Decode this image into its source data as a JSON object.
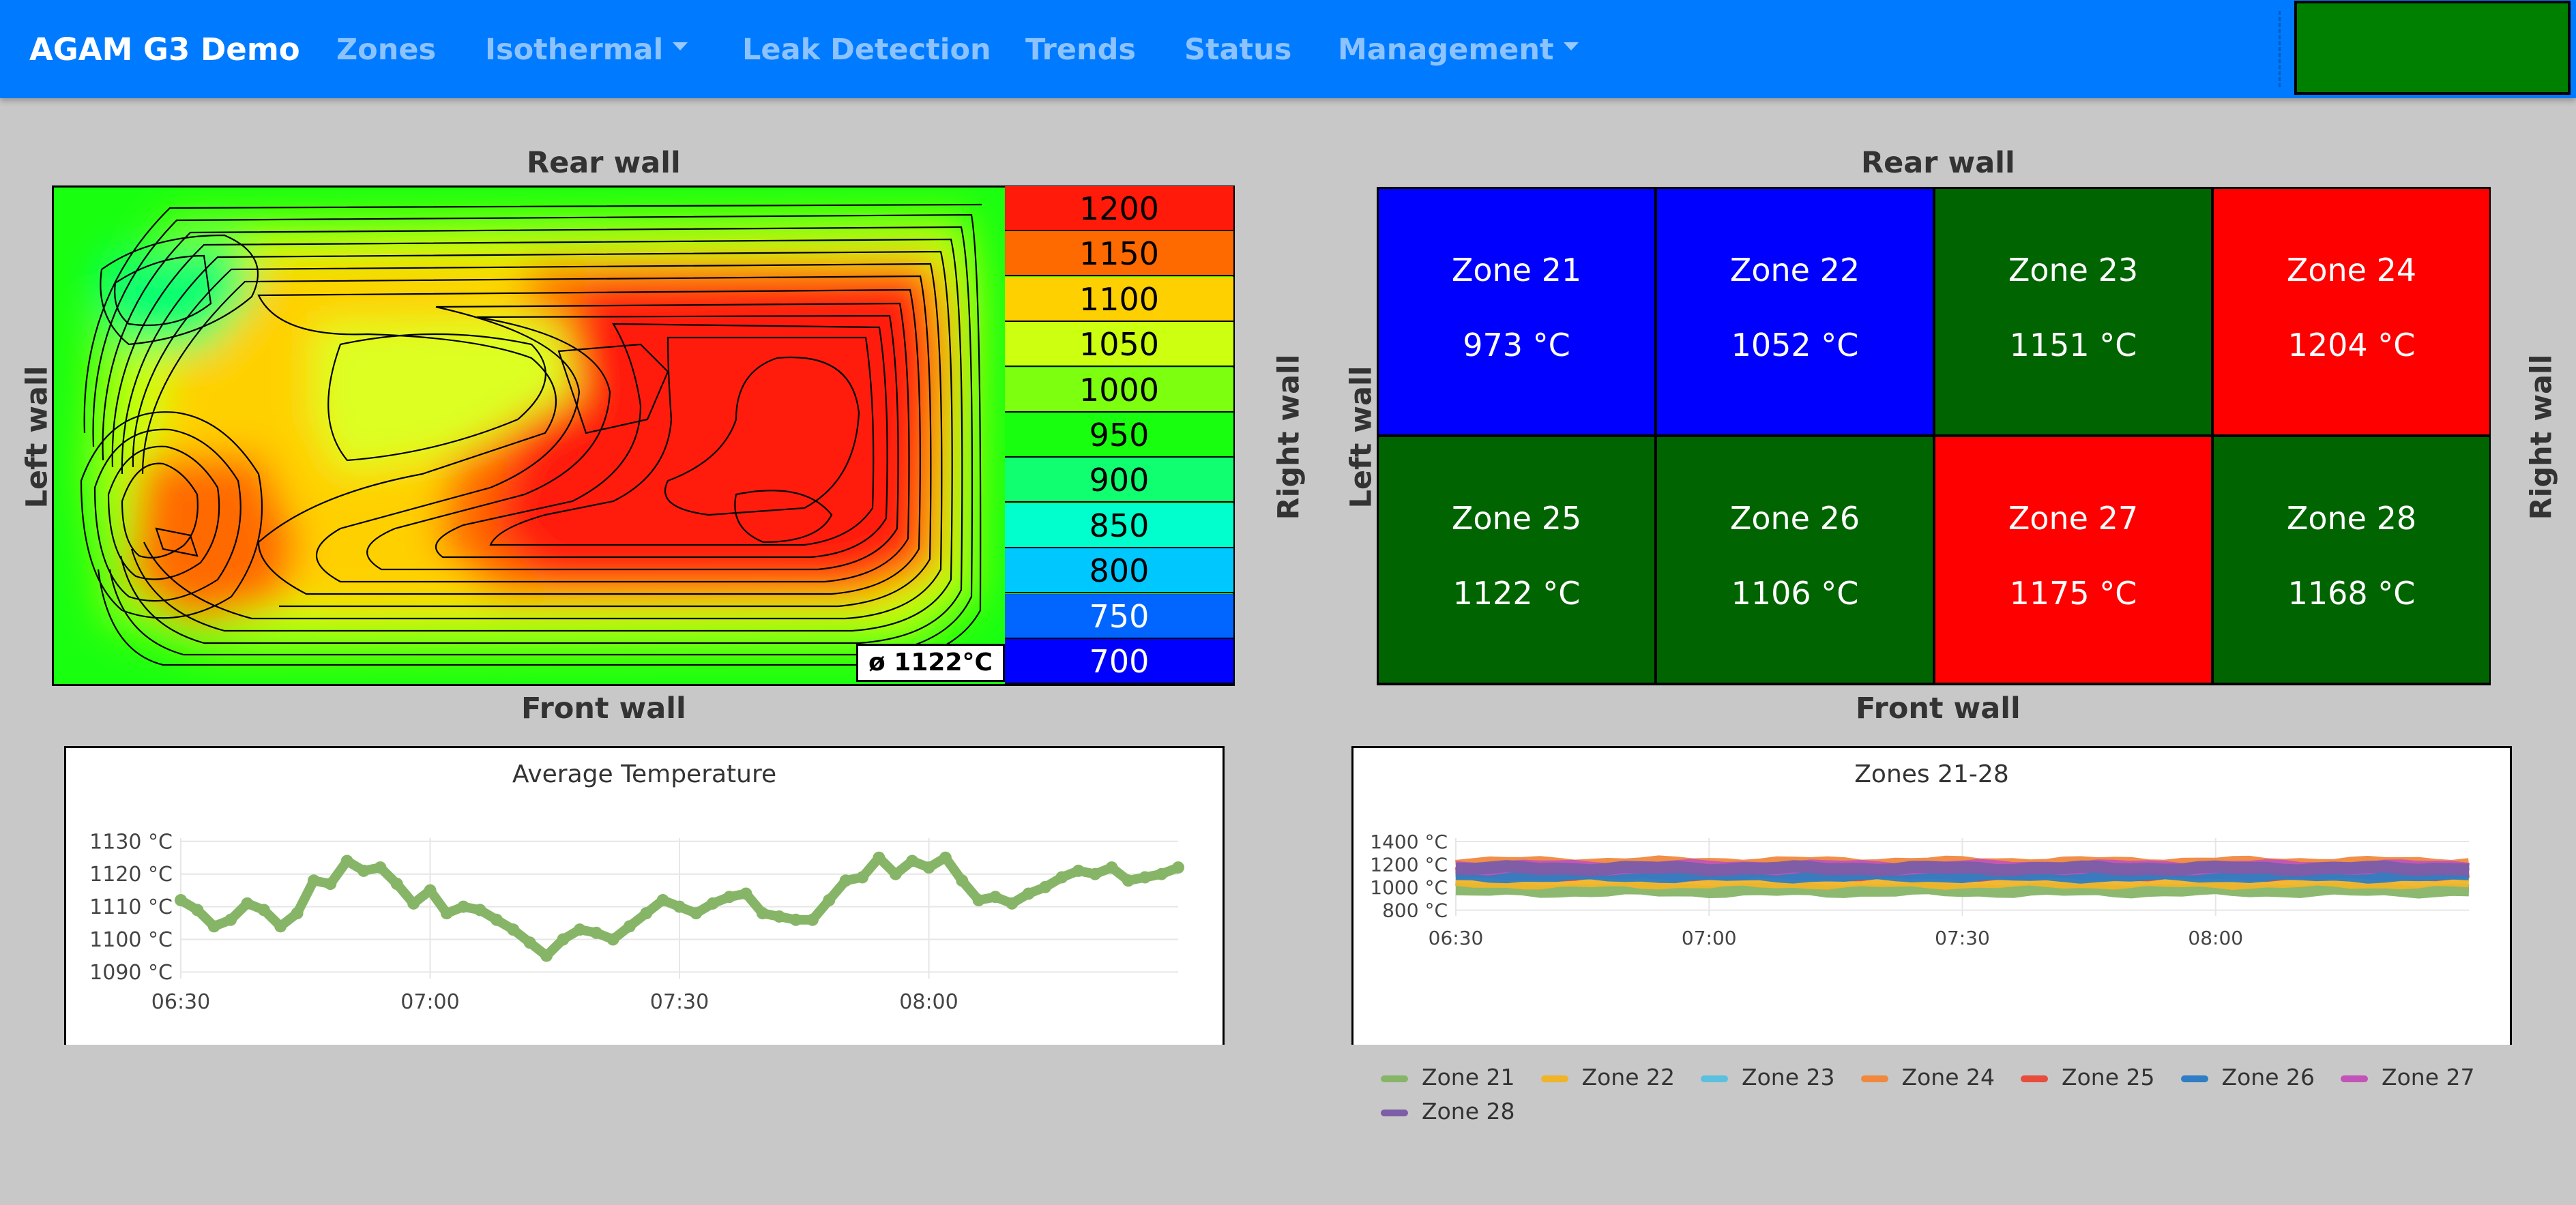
{
  "nav": {
    "brand": "AGAM G3 Demo",
    "items": [
      {
        "label": "Zones",
        "dropdown": false
      },
      {
        "label": "Isothermal",
        "dropdown": true
      },
      {
        "label": "Leak Detection",
        "dropdown": false
      },
      {
        "label": "Trends",
        "dropdown": false
      },
      {
        "label": "Status",
        "dropdown": false
      },
      {
        "label": "Management",
        "dropdown": true
      }
    ],
    "status_color": "#008000"
  },
  "heatmap": {
    "rear_label": "Rear wall",
    "front_label": "Front wall",
    "left_label": "Left wall",
    "right_label": "Right wall",
    "average": "ø 1122°C",
    "scale": [
      {
        "value": "1200",
        "color": "#ff1a0a"
      },
      {
        "value": "1150",
        "color": "#ff6a00"
      },
      {
        "value": "1100",
        "color": "#ffd000"
      },
      {
        "value": "1050",
        "color": "#ccff10"
      },
      {
        "value": "1000",
        "color": "#7dff10"
      },
      {
        "value": "950",
        "color": "#19ff10"
      },
      {
        "value": "900",
        "color": "#10ff70"
      },
      {
        "value": "850",
        "color": "#00ffcc"
      },
      {
        "value": "800",
        "color": "#00c8ff"
      },
      {
        "value": "750",
        "color": "#0066ff"
      },
      {
        "value": "700",
        "color": "#0000ff"
      }
    ]
  },
  "zone_grid": {
    "rear_label": "Rear wall",
    "front_label": "Front wall",
    "left_label": "Left wall",
    "right_label": "Right wall",
    "zones": [
      {
        "name": "Zone 21",
        "temp": "973 °C",
        "color": "#0000ff"
      },
      {
        "name": "Zone 22",
        "temp": "1052 °C",
        "color": "#0000ff"
      },
      {
        "name": "Zone 23",
        "temp": "1151 °C",
        "color": "#006400"
      },
      {
        "name": "Zone 24",
        "temp": "1204 °C",
        "color": "#ff0000"
      },
      {
        "name": "Zone 25",
        "temp": "1122 °C",
        "color": "#006400"
      },
      {
        "name": "Zone 26",
        "temp": "1106 °C",
        "color": "#006400"
      },
      {
        "name": "Zone 27",
        "temp": "1175 °C",
        "color": "#ff0000"
      },
      {
        "name": "Zone 28",
        "temp": "1168 °C",
        "color": "#006400"
      }
    ]
  },
  "chart_data": [
    {
      "type": "line",
      "title": "Average Temperature",
      "ylim": [
        1088,
        1131
      ],
      "yticks": [
        "1130 °C",
        "1120 °C",
        "1110 °C",
        "1100 °C",
        "1090 °C"
      ],
      "ytick_values": [
        1130,
        1120,
        1110,
        1100,
        1090
      ],
      "xticks": [
        "06:30",
        "07:00",
        "07:30",
        "08:00"
      ],
      "xtick_minutes": [
        0,
        30,
        60,
        90
      ],
      "x_range_minutes": [
        0,
        120
      ],
      "grid": true,
      "series": [
        {
          "color": "#86b567",
          "x": [
            0,
            2,
            4,
            6,
            8,
            10,
            12,
            14,
            16,
            18,
            20,
            22,
            24,
            26,
            28,
            30,
            32,
            34,
            36,
            38,
            40,
            42,
            44,
            46,
            48,
            50,
            52,
            54,
            56,
            58,
            60,
            62,
            64,
            66,
            68,
            70,
            72,
            74,
            76,
            78,
            80,
            82,
            84,
            86,
            88,
            90,
            92,
            94,
            96,
            98,
            100,
            102,
            104,
            106,
            108,
            110,
            112,
            114,
            116,
            118,
            120
          ],
          "values": [
            1112,
            1109,
            1104,
            1106,
            1111,
            1109,
            1104,
            1108,
            1118,
            1117,
            1124,
            1121,
            1122,
            1117,
            1111,
            1115,
            1108,
            1110,
            1109,
            1106,
            1103,
            1099,
            1095,
            1100,
            1103,
            1102,
            1100,
            1104,
            1108,
            1112,
            1110,
            1108,
            1111,
            1113,
            1114,
            1108,
            1107,
            1106,
            1106,
            1112,
            1118,
            1119,
            1125,
            1120,
            1124,
            1122,
            1125,
            1118,
            1112,
            1113,
            1111,
            1114,
            1116,
            1119,
            1121,
            1120,
            1122,
            1118,
            1119,
            1120,
            1122
          ]
        }
      ]
    },
    {
      "type": "area",
      "title": "Zones 21-28",
      "ylim": [
        750,
        1430
      ],
      "yticks": [
        "1400 °C",
        "1200 °C",
        "1000 °C",
        "800 °C"
      ],
      "ytick_values": [
        1400,
        1200,
        1000,
        800
      ],
      "xticks": [
        "06:30",
        "07:00",
        "07:30",
        "08:00"
      ],
      "xtick_minutes": [
        0,
        30,
        60,
        90
      ],
      "x_range_minutes": [
        0,
        120
      ],
      "grid": true,
      "legend_position": "bottom",
      "series": [
        {
          "name": "Zone 21",
          "color": "#86b567",
          "level": 975
        },
        {
          "name": "Zone 22",
          "color": "#f0b429",
          "level": 1050
        },
        {
          "name": "Zone 23",
          "color": "#5bc0de",
          "level": 1150
        },
        {
          "name": "Zone 24",
          "color": "#f0883e",
          "level": 1205
        },
        {
          "name": "Zone 25",
          "color": "#e74c3c",
          "level": 1120
        },
        {
          "name": "Zone 26",
          "color": "#2e7dc5",
          "level": 1105
        },
        {
          "name": "Zone 27",
          "color": "#c254b8",
          "level": 1175
        },
        {
          "name": "Zone 28",
          "color": "#7b5ea7",
          "level": 1165
        }
      ]
    }
  ]
}
